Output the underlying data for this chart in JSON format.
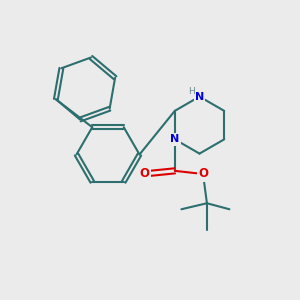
{
  "bg_color": "#ebebeb",
  "bond_color": "#2d6e6e",
  "N_color": "#0000dd",
  "O_color": "#dd0000",
  "lw": 1.5,
  "figsize": [
    3.0,
    3.0
  ],
  "dpi": 100,
  "xlim": [
    0,
    10
  ],
  "ylim": [
    0,
    10
  ]
}
